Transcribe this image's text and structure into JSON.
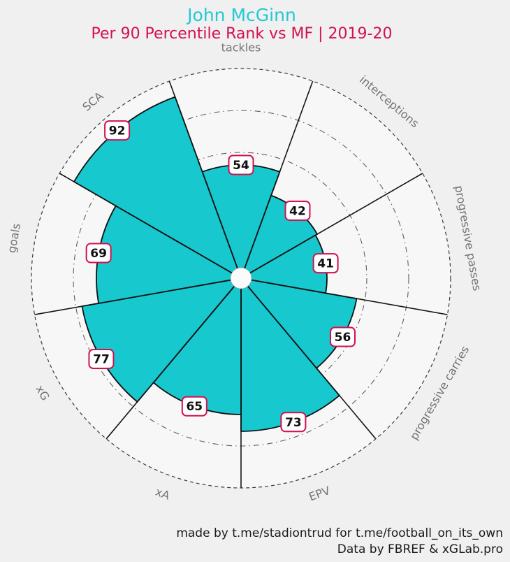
{
  "header": {
    "title": "John McGinn",
    "subtitle": "Per 90 Percentile Rank vs MF | 2019-20"
  },
  "chart_data": {
    "type": "pie",
    "variant": "pizza-percentile-polar-bar",
    "title": "John McGinn",
    "subtitle": "Per 90 Percentile Rank vs MF | 2019-20",
    "categories": [
      "tackles",
      "interceptions",
      "progressive passes",
      "progressive carries",
      "EPV",
      "xA",
      "xG",
      "goals",
      "SCA"
    ],
    "values": [
      54,
      42,
      41,
      56,
      73,
      65,
      77,
      69,
      92
    ],
    "value_range": [
      0,
      100
    ],
    "rings_percent": [
      20,
      40,
      60,
      80,
      100
    ],
    "layout": {
      "start": "top",
      "direction": "clockwise",
      "slice_span_deg": 40,
      "grid": "dash-dot rings at 20/40/60/80, dashed outer ring at 100",
      "legend": "none"
    },
    "colors": {
      "slice_fill": "#17c8cf",
      "slice_edge": "#101010",
      "inner_area": "#f7f7f7",
      "ring_line": "#5f5f5f",
      "outer_ring_line": "#3a3a3a",
      "value_box_fill": "#ffffff",
      "value_box_border": "#d2114e",
      "value_text": "#101010",
      "param_label": "#737373",
      "title": "#23c8d5",
      "subtitle": "#d2114e",
      "background": "#f0f0f0"
    }
  },
  "footer": {
    "line1": "made by t.me/stadiontrud for t.me/football_on_its_own",
    "line2": "Data by FBREF & xGLab.pro"
  }
}
